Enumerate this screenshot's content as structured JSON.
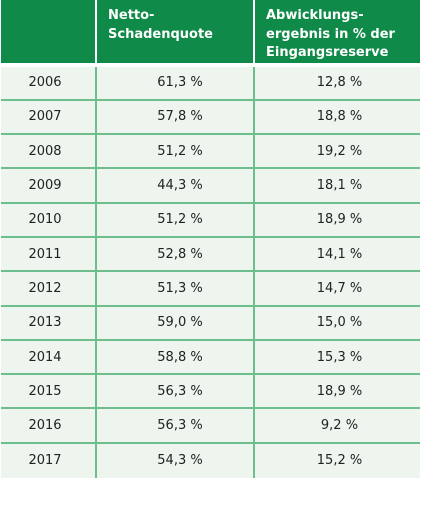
{
  "table": {
    "headers": {
      "year": "",
      "netto_schadenquote": "Netto-\nSchadenquote",
      "abwicklungsergebnis": "Abwicklungs-\nergebnis in % der\nEingangsreserve"
    },
    "rows": [
      {
        "year": "2006",
        "netto_schadenquote": "61,3 %",
        "abwicklungsergebnis": "12,8 %"
      },
      {
        "year": "2007",
        "netto_schadenquote": "57,8 %",
        "abwicklungsergebnis": "18,8 %"
      },
      {
        "year": "2008",
        "netto_schadenquote": "51,2 %",
        "abwicklungsergebnis": "19,2 %"
      },
      {
        "year": "2009",
        "netto_schadenquote": "44,3 %",
        "abwicklungsergebnis": "18,1 %"
      },
      {
        "year": "2010",
        "netto_schadenquote": "51,2 %",
        "abwicklungsergebnis": "18,9 %"
      },
      {
        "year": "2011",
        "netto_schadenquote": "52,8 %",
        "abwicklungsergebnis": "14,1 %"
      },
      {
        "year": "2012",
        "netto_schadenquote": "51,3 %",
        "abwicklungsergebnis": "14,7 %"
      },
      {
        "year": "2013",
        "netto_schadenquote": "59,0 %",
        "abwicklungsergebnis": "15,0 %"
      },
      {
        "year": "2014",
        "netto_schadenquote": "58,8 %",
        "abwicklungsergebnis": "15,3 %"
      },
      {
        "year": "2015",
        "netto_schadenquote": "56,3 %",
        "abwicklungsergebnis": "18,9 %"
      },
      {
        "year": "2016",
        "netto_schadenquote": "56,3 %",
        "abwicklungsergebnis": "9,2 %"
      },
      {
        "year": "2017",
        "netto_schadenquote": "54,3 %",
        "abwicklungsergebnis": "15,2 %"
      }
    ]
  },
  "colors": {
    "header_background": "#0f8a48",
    "header_text": "#ffffff",
    "row_background": "#eef4ee",
    "row_divider": "#6cbf8c",
    "body_text": "#222222"
  }
}
